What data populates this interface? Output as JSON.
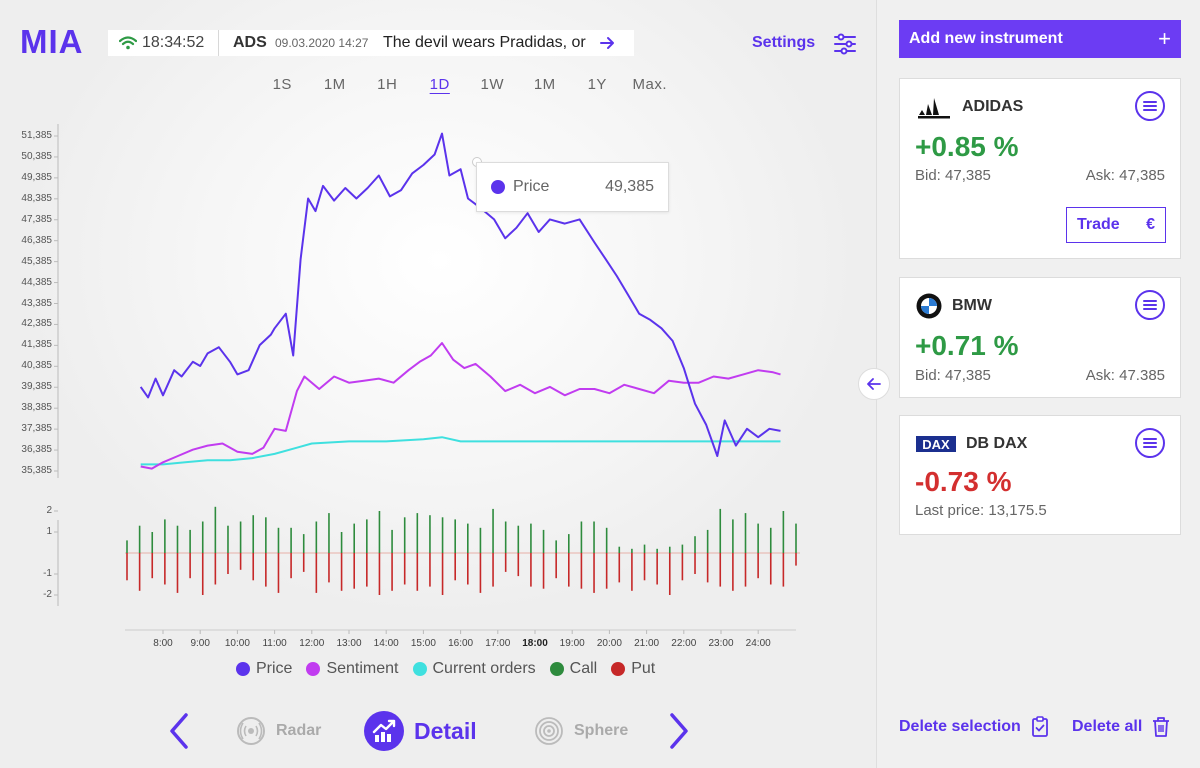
{
  "app": {
    "logo": "MIA"
  },
  "ticker": {
    "time": "18:34:52",
    "symbol": "ADS",
    "timestamp": "09.03.2020 14:27",
    "headline": "The devil wears Pradidas, or"
  },
  "header": {
    "settings_label": "Settings"
  },
  "time_ranges": {
    "items": [
      "1S",
      "1M",
      "1H",
      "1D",
      "1W",
      "1M",
      "1Y",
      "Max."
    ],
    "active": "1D"
  },
  "tooltip": {
    "label": "Price",
    "value": "49,385"
  },
  "legend": [
    {
      "label": "Price",
      "color": "#5b33ec"
    },
    {
      "label": "Sentiment",
      "color": "#c13cf0"
    },
    {
      "label": "Current orders",
      "color": "#3fe0df"
    },
    {
      "label": "Call",
      "color": "#2e8b3d"
    },
    {
      "label": "Put",
      "color": "#c62828"
    }
  ],
  "bottom_nav": {
    "radar": "Radar",
    "detail": "Detail",
    "sphere": "Sphere"
  },
  "sidebar": {
    "add_label": "Add new instrument",
    "add_plus": "+",
    "delete_selection": "Delete selection",
    "delete_all": "Delete all"
  },
  "instruments": {
    "adidas": {
      "name": "ADIDAS",
      "change": "+0.85 %",
      "bid": "Bid: 47,385",
      "ask": "Ask: 47,385",
      "trade": "Trade",
      "trade_symbol": "€"
    },
    "bmw": {
      "name": "BMW",
      "change": "+0.71 %",
      "bid": "Bid: 47,385",
      "ask": "Ask: 47.385"
    },
    "dax": {
      "name": "DB DAX",
      "logo_text": "DAX",
      "change": "-0.73 %",
      "last_price": "Last price: 13,175.5"
    }
  },
  "chart_data": [
    {
      "type": "line",
      "y_ticks": [
        "51,385",
        "50,385",
        "49,385",
        "48,385",
        "47,385",
        "46,385",
        "45,385",
        "44,385",
        "43,385",
        "42,385",
        "41,385",
        "40,385",
        "39,385",
        "38,385",
        "37,385",
        "36,385",
        "35,385"
      ],
      "x_ticks": [
        "8:00",
        "9:00",
        "10:00",
        "11:00",
        "12:00",
        "13:00",
        "14:00",
        "15:00",
        "16:00",
        "17:00",
        "18:00",
        "19:00",
        "20:00",
        "21:00",
        "22:00",
        "23:00",
        "24:00"
      ],
      "ylim": [
        35.385,
        51.385
      ],
      "series": [
        {
          "name": "Price",
          "color": "#5b33ec",
          "points": [
            [
              7.4,
              39.4
            ],
            [
              7.6,
              38.9
            ],
            [
              7.8,
              39.8
            ],
            [
              8.0,
              39.0
            ],
            [
              8.3,
              40.2
            ],
            [
              8.5,
              39.9
            ],
            [
              8.8,
              40.6
            ],
            [
              9.0,
              40.4
            ],
            [
              9.2,
              41.0
            ],
            [
              9.5,
              41.3
            ],
            [
              9.8,
              40.6
            ],
            [
              10.0,
              40.0
            ],
            [
              10.3,
              40.2
            ],
            [
              10.6,
              41.4
            ],
            [
              10.9,
              41.9
            ],
            [
              11.0,
              42.2
            ],
            [
              11.3,
              42.9
            ],
            [
              11.5,
              40.9
            ],
            [
              11.7,
              45.5
            ],
            [
              11.9,
              48.4
            ],
            [
              12.1,
              47.8
            ],
            [
              12.3,
              49.0
            ],
            [
              12.6,
              48.3
            ],
            [
              12.9,
              48.9
            ],
            [
              13.2,
              48.4
            ],
            [
              13.5,
              48.9
            ],
            [
              13.8,
              49.5
            ],
            [
              14.1,
              48.5
            ],
            [
              14.4,
              48.8
            ],
            [
              14.7,
              49.6
            ],
            [
              15.0,
              50.0
            ],
            [
              15.3,
              50.5
            ],
            [
              15.5,
              51.5
            ],
            [
              15.7,
              49.5
            ],
            [
              16.0,
              49.8
            ],
            [
              16.2,
              48.4
            ],
            [
              16.5,
              48.0
            ],
            [
              16.9,
              47.4
            ],
            [
              17.2,
              46.5
            ],
            [
              17.5,
              47.0
            ],
            [
              17.8,
              47.7
            ],
            [
              18.1,
              46.8
            ],
            [
              18.4,
              47.4
            ],
            [
              18.8,
              47.2
            ],
            [
              19.2,
              47.4
            ],
            [
              19.6,
              46.3
            ],
            [
              19.9,
              45.5
            ],
            [
              20.2,
              44.7
            ],
            [
              20.5,
              43.8
            ],
            [
              20.8,
              42.9
            ],
            [
              21.1,
              42.6
            ],
            [
              21.4,
              42.2
            ],
            [
              21.7,
              41.6
            ],
            [
              22.0,
              40.3
            ],
            [
              22.3,
              38.6
            ],
            [
              22.6,
              37.6
            ],
            [
              22.9,
              36.1
            ],
            [
              23.1,
              37.8
            ],
            [
              23.4,
              36.6
            ],
            [
              23.7,
              37.4
            ],
            [
              24.0,
              37.0
            ],
            [
              24.3,
              37.4
            ],
            [
              24.6,
              37.3
            ]
          ]
        },
        {
          "name": "Sentiment",
          "color": "#c13cf0",
          "points": [
            [
              7.4,
              35.6
            ],
            [
              7.7,
              35.5
            ],
            [
              8.0,
              35.8
            ],
            [
              8.4,
              36.1
            ],
            [
              8.8,
              36.4
            ],
            [
              9.2,
              36.6
            ],
            [
              9.6,
              36.7
            ],
            [
              10.0,
              36.3
            ],
            [
              10.4,
              36.2
            ],
            [
              10.7,
              36.5
            ],
            [
              11.0,
              37.4
            ],
            [
              11.3,
              37.3
            ],
            [
              11.6,
              39.2
            ],
            [
              11.8,
              39.9
            ],
            [
              12.2,
              39.3
            ],
            [
              12.6,
              39.9
            ],
            [
              13.0,
              39.6
            ],
            [
              13.4,
              39.7
            ],
            [
              13.8,
              39.8
            ],
            [
              14.2,
              39.6
            ],
            [
              14.6,
              40.2
            ],
            [
              14.9,
              40.6
            ],
            [
              15.2,
              40.9
            ],
            [
              15.5,
              41.5
            ],
            [
              15.8,
              40.7
            ],
            [
              16.1,
              40.3
            ],
            [
              16.4,
              40.5
            ],
            [
              16.8,
              39.9
            ],
            [
              17.2,
              39.2
            ],
            [
              17.6,
              39.5
            ],
            [
              18.0,
              39.1
            ],
            [
              18.4,
              39.4
            ],
            [
              18.8,
              39.0
            ],
            [
              19.2,
              39.3
            ],
            [
              19.6,
              39.3
            ],
            [
              20.0,
              39.1
            ],
            [
              20.4,
              39.5
            ],
            [
              20.8,
              39.3
            ],
            [
              21.2,
              39.1
            ],
            [
              21.6,
              39.7
            ],
            [
              22.0,
              39.6
            ],
            [
              22.4,
              39.6
            ],
            [
              22.8,
              39.9
            ],
            [
              23.2,
              39.8
            ],
            [
              23.6,
              40.0
            ],
            [
              24.0,
              40.2
            ],
            [
              24.4,
              40.1
            ],
            [
              24.6,
              40.0
            ]
          ]
        },
        {
          "name": "Current orders",
          "color": "#3fe0df",
          "points": [
            [
              7.4,
              35.7
            ],
            [
              8.0,
              35.7
            ],
            [
              8.6,
              35.8
            ],
            [
              9.2,
              35.9
            ],
            [
              9.8,
              35.9
            ],
            [
              10.4,
              36.0
            ],
            [
              11.0,
              36.2
            ],
            [
              11.6,
              36.5
            ],
            [
              12.0,
              36.7
            ],
            [
              13.0,
              36.8
            ],
            [
              14.0,
              36.8
            ],
            [
              15.0,
              36.9
            ],
            [
              15.5,
              37.0
            ],
            [
              16.0,
              36.8
            ],
            [
              17.0,
              36.8
            ],
            [
              18.0,
              36.8
            ],
            [
              19.0,
              36.8
            ],
            [
              20.0,
              36.8
            ],
            [
              21.0,
              36.8
            ],
            [
              22.0,
              36.8
            ],
            [
              23.0,
              36.8
            ],
            [
              24.0,
              36.8
            ],
            [
              24.6,
              36.8
            ]
          ]
        }
      ]
    },
    {
      "type": "bar",
      "title": "",
      "y_ticks": [
        "2",
        "1",
        "-1",
        "-2"
      ],
      "ylim": [
        -3,
        3
      ],
      "series": [
        {
          "name": "Call",
          "color": "#2e8b3d",
          "values": [
            0.6,
            1.3,
            1.0,
            1.6,
            1.3,
            1.1,
            1.5,
            2.2,
            1.3,
            1.5,
            1.8,
            1.7,
            1.2,
            1.2,
            0.9,
            1.5,
            1.9,
            1.0,
            1.4,
            1.6,
            2.0,
            1.1,
            1.7,
            1.9,
            1.8,
            1.7,
            1.6,
            1.4,
            1.2,
            2.1,
            1.5,
            1.3,
            1.4,
            1.1,
            0.6,
            0.9,
            1.5,
            1.5,
            1.2,
            0.3,
            0.2,
            0.4,
            0.2,
            0.3,
            0.4,
            0.8,
            1.1,
            2.1,
            1.6,
            1.9,
            1.4,
            1.2,
            2.0,
            1.4
          ]
        },
        {
          "name": "Put",
          "color": "#c62828",
          "values": [
            -1.3,
            -1.8,
            -1.2,
            -1.5,
            -1.9,
            -1.2,
            -2.0,
            -1.5,
            -1.0,
            -0.8,
            -1.3,
            -1.6,
            -1.9,
            -1.2,
            -0.9,
            -1.9,
            -1.4,
            -1.8,
            -1.7,
            -1.6,
            -2.0,
            -1.8,
            -1.5,
            -1.8,
            -1.6,
            -2.0,
            -1.3,
            -1.5,
            -1.9,
            -1.6,
            -0.9,
            -1.1,
            -1.6,
            -1.7,
            -1.2,
            -1.6,
            -1.7,
            -1.9,
            -1.7,
            -1.4,
            -1.8,
            -1.3,
            -1.5,
            -2.0,
            -1.3,
            -1.0,
            -1.4,
            -1.6,
            -1.8,
            -1.6,
            -1.2,
            -1.5,
            -1.6,
            -0.6
          ]
        }
      ]
    }
  ]
}
